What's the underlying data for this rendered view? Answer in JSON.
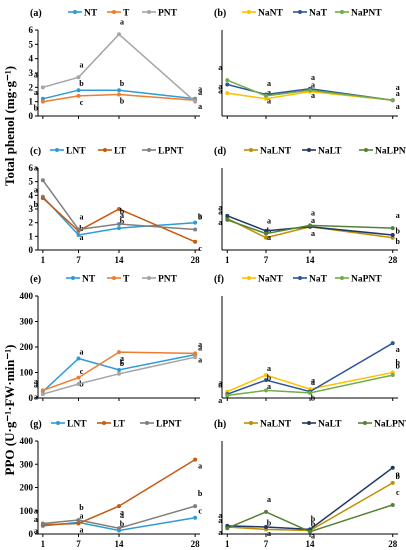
{
  "figure": {
    "ylabel_top": "Total phenol (mg·g⁻¹)",
    "ylabel_bottom": "PPO (U·g⁻¹·FW·min⁻¹)"
  },
  "chart_data": [
    {
      "id": "a",
      "type": "line",
      "label": "(a)",
      "x": [
        1,
        7,
        14,
        28
      ],
      "xticks": [
        "1",
        "7",
        "14",
        "28"
      ],
      "show_xticks": false,
      "ylim": [
        0,
        6
      ],
      "yticks": [
        0,
        1,
        2,
        3,
        4,
        5,
        6
      ],
      "ylabel": "",
      "series": [
        {
          "name": "NT",
          "color": "#2e9bd6",
          "values": [
            1.2,
            1.8,
            1.8,
            1.2
          ],
          "sig": [
            "a",
            "b",
            "b",
            "a"
          ]
        },
        {
          "name": "T",
          "color": "#ed7d31",
          "values": [
            1.0,
            1.4,
            1.5,
            1.1
          ],
          "sig": [
            "b",
            "c",
            "b",
            "a"
          ]
        },
        {
          "name": "PNT",
          "color": "#a5a5a5",
          "values": [
            2.0,
            2.7,
            5.7,
            1.0
          ],
          "sig": [
            "a",
            "a",
            "a",
            "a"
          ]
        }
      ]
    },
    {
      "id": "b",
      "type": "line",
      "label": "(b)",
      "x": [
        1,
        7,
        14,
        28
      ],
      "xticks": [
        "1",
        "7",
        "14",
        "28"
      ],
      "show_xticks": false,
      "ylim": [
        0,
        6
      ],
      "yticks": [],
      "ylabel": "",
      "series": [
        {
          "name": "NaNT",
          "color": "#ffc000",
          "values": [
            1.6,
            1.2,
            1.7,
            1.1
          ],
          "sig": [
            "a",
            "a",
            "a",
            "a"
          ]
        },
        {
          "name": "NaT",
          "color": "#2f5597",
          "values": [
            2.2,
            1.5,
            1.9,
            1.1
          ],
          "sig": [
            "a",
            "a",
            "a",
            "a"
          ]
        },
        {
          "name": "NaPNT",
          "color": "#70ad47",
          "values": [
            2.5,
            1.4,
            1.8,
            1.1
          ],
          "sig": [
            "a",
            "a",
            "a",
            "a"
          ]
        }
      ]
    },
    {
      "id": "c",
      "type": "line",
      "label": "(c)",
      "x": [
        1,
        7,
        14,
        28
      ],
      "xticks": [
        "1",
        "7",
        "14",
        "28"
      ],
      "show_xticks": true,
      "ylim": [
        0,
        6
      ],
      "yticks": [
        0,
        1,
        2,
        3,
        4,
        5,
        6
      ],
      "ylabel": "",
      "series": [
        {
          "name": "LNT",
          "color": "#2e9bd6",
          "values": [
            3.9,
            1.1,
            1.6,
            2.0
          ],
          "sig": [
            "a",
            "b",
            "b",
            "a"
          ]
        },
        {
          "name": "LT",
          "color": "#c55a11",
          "values": [
            3.8,
            1.4,
            3.0,
            0.6
          ],
          "sig": [
            "b",
            "a",
            "a",
            "c"
          ]
        },
        {
          "name": "LPNT",
          "color": "#7f7f7f",
          "values": [
            5.1,
            1.5,
            1.9,
            1.5
          ],
          "sig": [
            "a",
            "a",
            "b",
            "b"
          ]
        }
      ]
    },
    {
      "id": "d",
      "type": "line",
      "label": "(d)",
      "x": [
        1,
        7,
        14,
        28
      ],
      "xticks": [
        "1",
        "7",
        "14",
        "28"
      ],
      "show_xticks": true,
      "ylim": [
        0,
        6
      ],
      "yticks": [],
      "ylabel": "",
      "series": [
        {
          "name": "NaLNT",
          "color": "#bf8f00",
          "values": [
            2.3,
            0.9,
            1.7,
            0.9
          ],
          "sig": [
            "a",
            "b",
            "a",
            "b"
          ]
        },
        {
          "name": "NaLT",
          "color": "#1f3864",
          "values": [
            2.5,
            1.4,
            1.7,
            1.1
          ],
          "sig": [
            "a",
            "a",
            "a",
            "b"
          ]
        },
        {
          "name": "NaLPNT",
          "color": "#548235",
          "values": [
            2.2,
            1.2,
            1.8,
            1.6
          ],
          "sig": [
            "a",
            "a",
            "a",
            "a"
          ]
        }
      ]
    },
    {
      "id": "e",
      "type": "line",
      "label": "(e)",
      "x": [
        1,
        7,
        14,
        28
      ],
      "xticks": [
        "1",
        "7",
        "14",
        "28"
      ],
      "show_xticks": false,
      "ylim": [
        0,
        400
      ],
      "yticks": [
        0,
        100,
        200,
        300,
        400
      ],
      "ylabel": "",
      "series": [
        {
          "name": "NT",
          "color": "#2e9bd6",
          "values": [
            25,
            155,
            110,
            170
          ],
          "sig": [
            "a",
            "a",
            "b",
            "a"
          ]
        },
        {
          "name": "T",
          "color": "#ed7d31",
          "values": [
            30,
            80,
            180,
            175
          ],
          "sig": [
            "a",
            "b",
            "a",
            "a"
          ]
        },
        {
          "name": "PNT",
          "color": "#a5a5a5",
          "values": [
            15,
            55,
            95,
            160
          ],
          "sig": [
            "a",
            "c",
            "c",
            "a"
          ]
        }
      ]
    },
    {
      "id": "f",
      "type": "line",
      "label": "(f)",
      "x": [
        1,
        7,
        14,
        28
      ],
      "xticks": [
        "1",
        "7",
        "14",
        "28"
      ],
      "show_xticks": false,
      "ylim": [
        0,
        400
      ],
      "yticks": [],
      "ylabel": "",
      "series": [
        {
          "name": "NaNT",
          "color": "#ffc000",
          "values": [
            25,
            90,
            35,
            100
          ],
          "sig": [
            "a",
            "a",
            "a",
            "b"
          ]
        },
        {
          "name": "NaT",
          "color": "#2f5597",
          "values": [
            15,
            70,
            25,
            215
          ],
          "sig": [
            "a",
            "a",
            "b",
            "a"
          ]
        },
        {
          "name": "NaPNT",
          "color": "#70ad47",
          "values": [
            10,
            30,
            20,
            90
          ],
          "sig": [
            "a",
            "b",
            "a",
            "b"
          ]
        }
      ]
    },
    {
      "id": "g",
      "type": "line",
      "label": "(g)",
      "x": [
        1,
        7,
        14,
        28
      ],
      "xticks": [
        "1",
        "7",
        "14",
        "28"
      ],
      "show_xticks": true,
      "ylim": [
        0,
        400
      ],
      "yticks": [
        0,
        100,
        200,
        300,
        400
      ],
      "ylabel": "",
      "series": [
        {
          "name": "LNT",
          "color": "#2e9bd6",
          "values": [
            35,
            50,
            15,
            70
          ],
          "sig": [
            "a",
            "a",
            "b",
            "c"
          ]
        },
        {
          "name": "LT",
          "color": "#c55a11",
          "values": [
            40,
            45,
            120,
            320
          ],
          "sig": [
            "a",
            "a",
            "a",
            "a"
          ]
        },
        {
          "name": "LPNT",
          "color": "#7f7f7f",
          "values": [
            45,
            60,
            25,
            120
          ],
          "sig": [
            "a",
            "b",
            "a",
            "b"
          ]
        }
      ]
    },
    {
      "id": "h",
      "type": "line",
      "label": "(h)",
      "x": [
        1,
        7,
        14,
        28
      ],
      "xticks": [
        "1",
        "7",
        "14",
        "28"
      ],
      "show_xticks": true,
      "ylim": [
        0,
        400
      ],
      "yticks": [],
      "ylabel": "",
      "series": [
        {
          "name": "NaLNT",
          "color": "#bf8f00",
          "values": [
            30,
            20,
            15,
            220
          ],
          "sig": [
            "a",
            "b",
            "b",
            "b"
          ]
        },
        {
          "name": "NaLT",
          "color": "#1f3864",
          "values": [
            35,
            30,
            20,
            285
          ],
          "sig": [
            "a",
            "a",
            "a",
            "a"
          ]
        },
        {
          "name": "NaLPNT",
          "color": "#548235",
          "values": [
            25,
            95,
            10,
            125
          ],
          "sig": [
            "a",
            "a",
            "b",
            "c"
          ]
        }
      ]
    }
  ]
}
